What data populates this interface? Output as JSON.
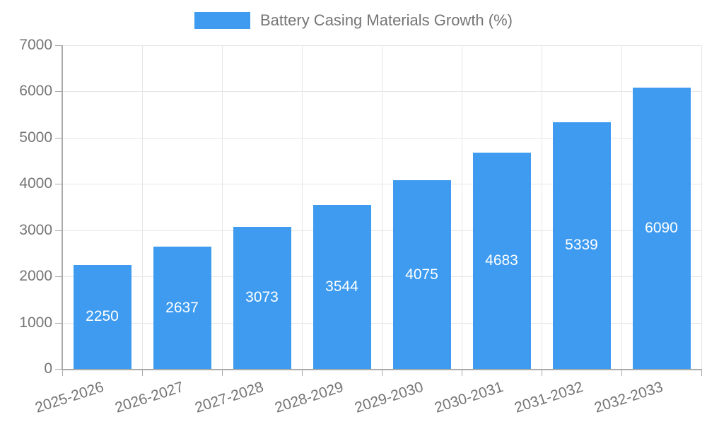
{
  "chart_data": {
    "type": "bar",
    "title": "Battery Casing Materials Growth (%)",
    "legend": "Battery Casing Materials Growth (%)",
    "categories": [
      "2025-2026",
      "2026-2027",
      "2027-2028",
      "2028-2029",
      "2029-2030",
      "2030-2031",
      "2031-2032",
      "2032-2033"
    ],
    "values": [
      2250,
      2637,
      3073,
      3544,
      4075,
      4683,
      5339,
      6090
    ],
    "xlabel": "",
    "ylabel": "",
    "ylim": [
      0,
      7000
    ],
    "ytick_step": 1000,
    "ytick_labels": [
      "0",
      "1000",
      "2000",
      "3000",
      "4000",
      "5000",
      "6000",
      "7000"
    ],
    "grid": true,
    "legend_position": "top-center",
    "value_labels_inside_bars": true
  },
  "colors": {
    "bar": "#3e9bf0",
    "bar_value_text": "#ffffff",
    "axis_text": "#757575",
    "legend_text": "#757575",
    "gridline": "#e6e6e6",
    "axis_line": "#aaaaaa",
    "background": "#ffffff"
  }
}
